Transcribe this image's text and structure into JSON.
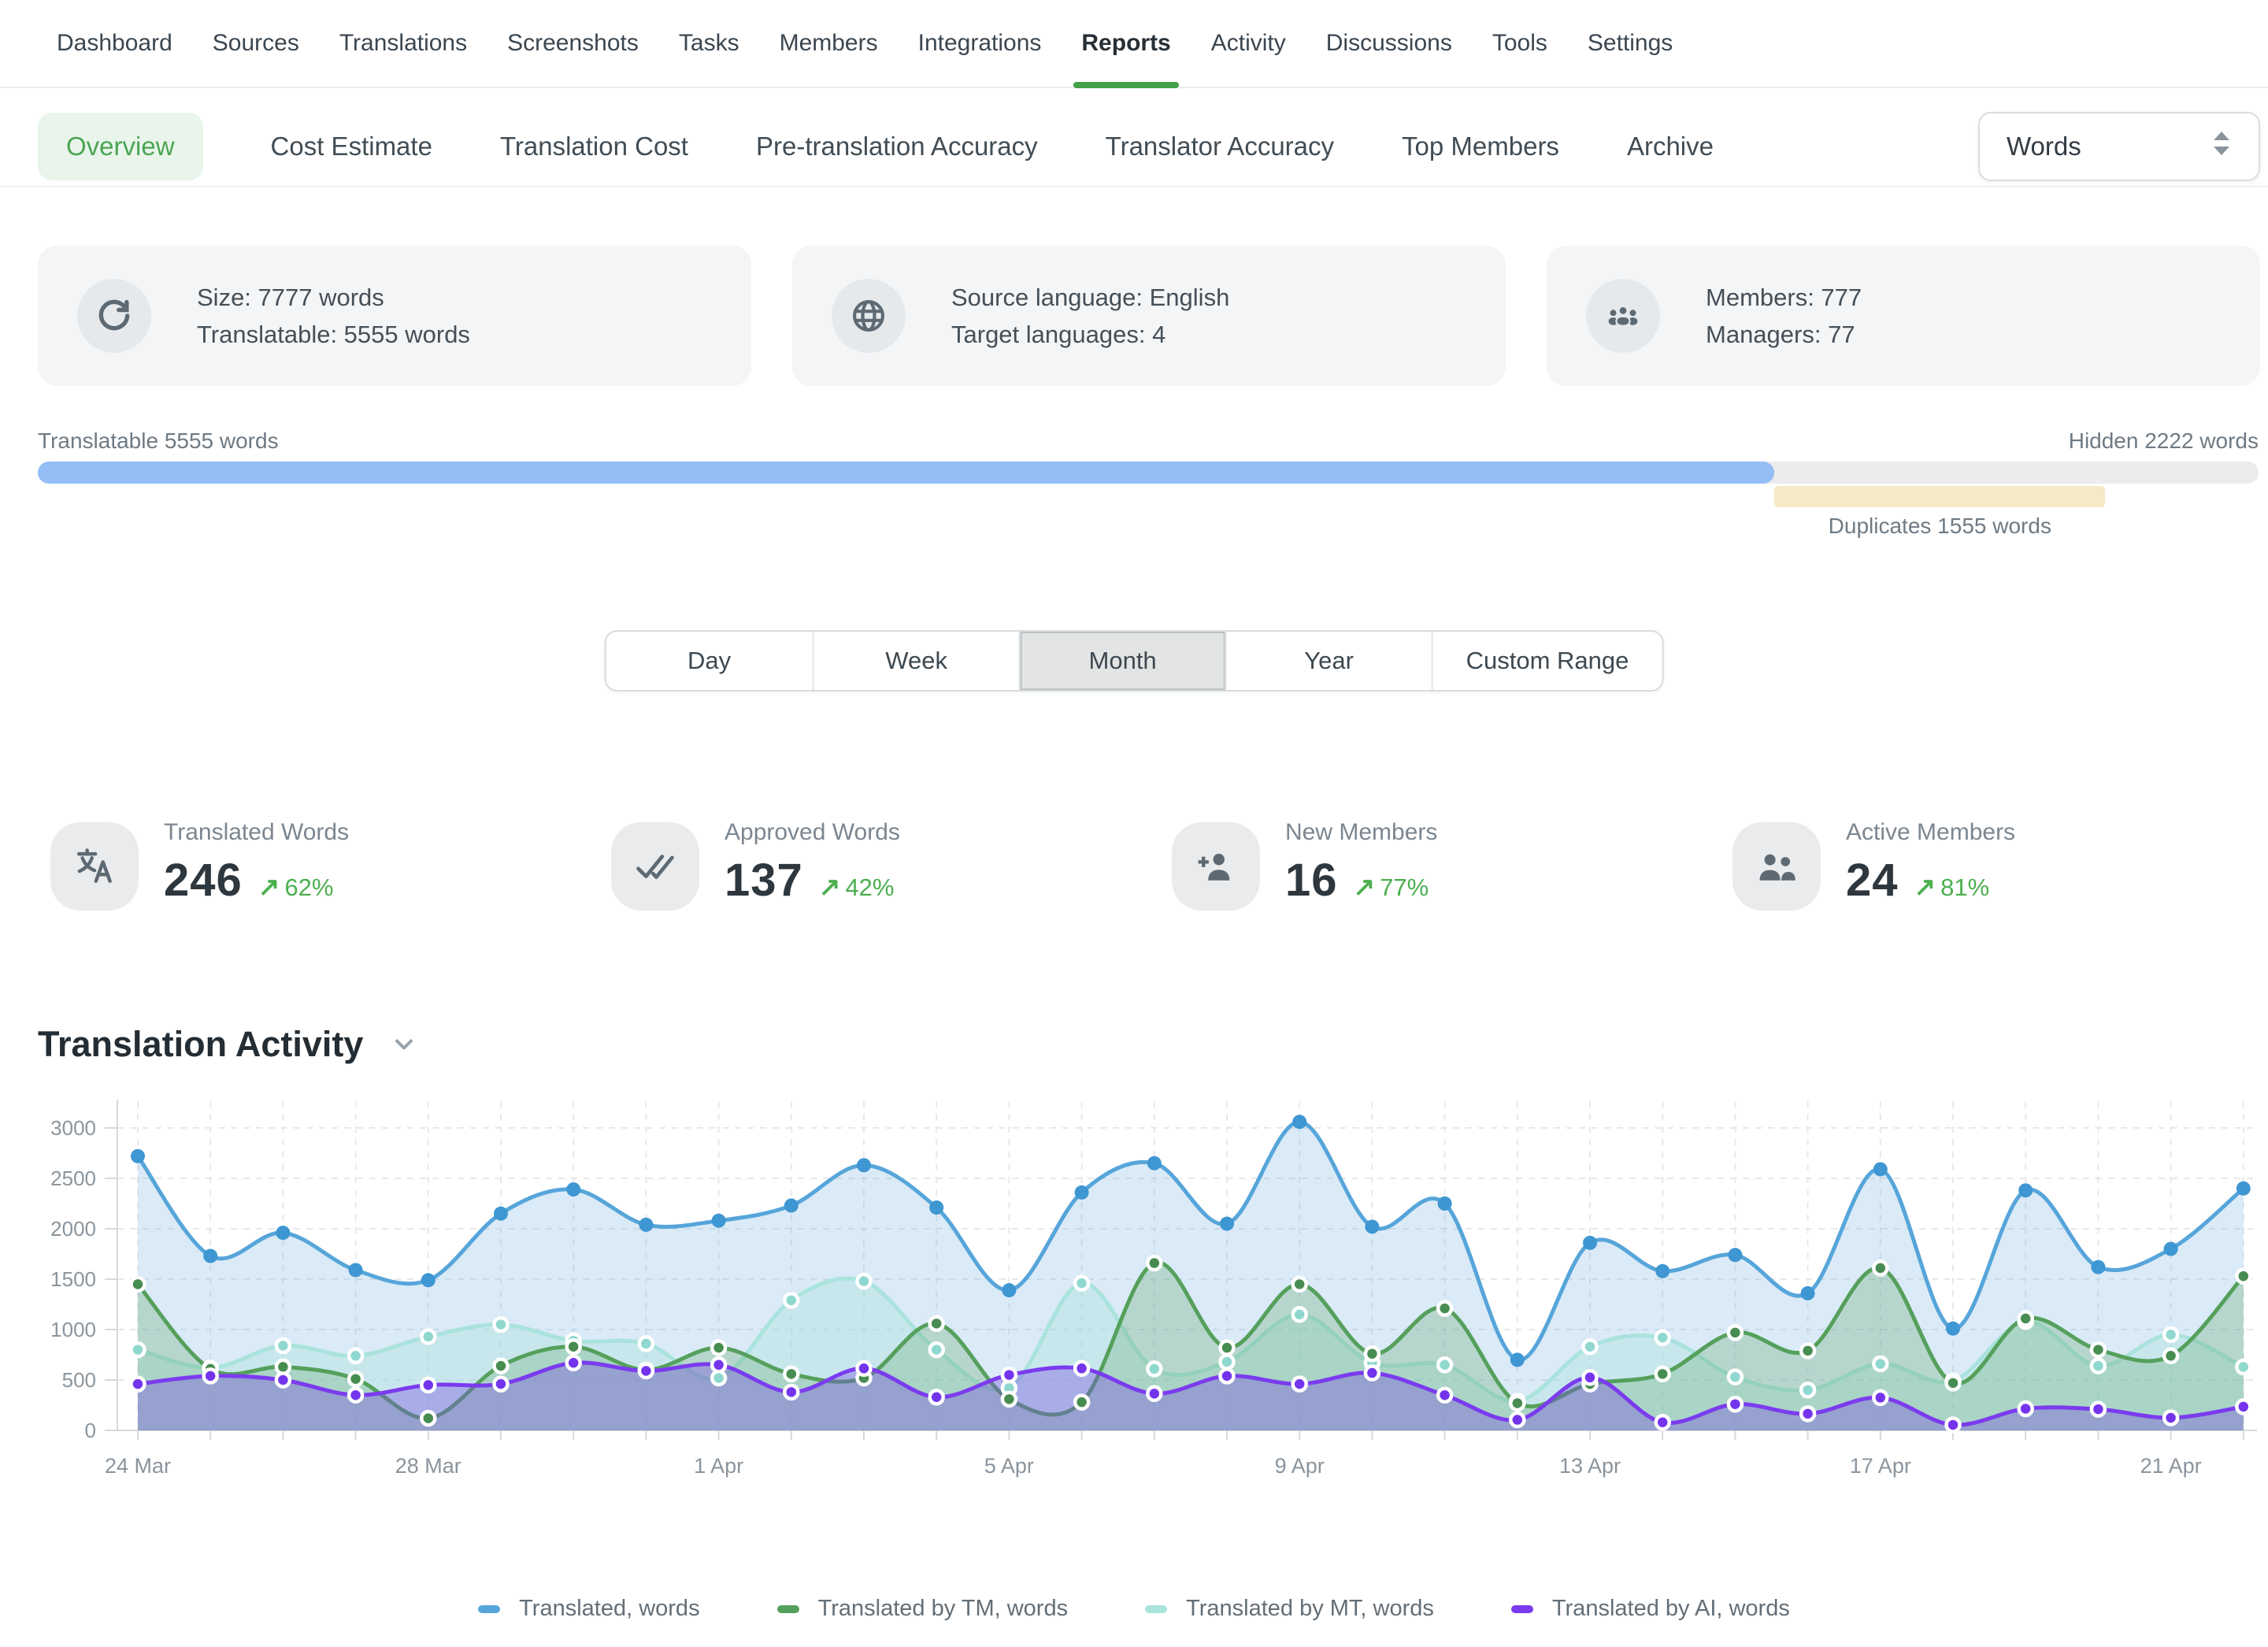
{
  "nav": {
    "items": [
      "Dashboard",
      "Sources",
      "Translations",
      "Screenshots",
      "Tasks",
      "Members",
      "Integrations",
      "Reports",
      "Activity",
      "Discussions",
      "Tools",
      "Settings"
    ],
    "active": "Reports"
  },
  "report_tabs": {
    "items": [
      "Overview",
      "Cost Estimate",
      "Translation Cost",
      "Pre-translation Accuracy",
      "Translator Accuracy",
      "Top Members",
      "Archive"
    ],
    "active": "Overview",
    "accent_color": "#4ba553",
    "accent_bg": "#e9f5ea"
  },
  "unit_select": {
    "value": "Words"
  },
  "info_cards": [
    {
      "icon": "sync-icon",
      "lines": [
        "Size: 7777 words",
        "Translatable: 5555 words"
      ]
    },
    {
      "icon": "globe-icon",
      "lines": [
        "Source language: English",
        "Target languages: 4"
      ]
    },
    {
      "icon": "team-icon",
      "lines": [
        "Members: 777",
        "Managers: 77"
      ]
    }
  ],
  "words_breakdown": {
    "left_label": "Translatable 5555 words",
    "right_label": "Hidden 2222 words",
    "duplicates_label": "Duplicates 1555 words",
    "translatable_pct": 78.2,
    "duplicates_pct": 14.9,
    "colors": {
      "translatable": "#93bef6",
      "track": "#ececee",
      "duplicates": "#f6e9c5"
    }
  },
  "range_tabs": {
    "items": [
      "Day",
      "Week",
      "Month",
      "Year",
      "Custom Range"
    ],
    "active": "Month"
  },
  "growth_color": "#4caf50",
  "stat_cards": [
    {
      "icon": "translate-icon",
      "label": "Translated Words",
      "value": "246",
      "growth": "62%"
    },
    {
      "icon": "double-check-icon",
      "label": "Approved Words",
      "value": "137",
      "growth": "42%"
    },
    {
      "icon": "user-add-icon",
      "label": "New Members",
      "value": "16",
      "growth": "77%"
    },
    {
      "icon": "users-icon",
      "label": "Active Members",
      "value": "24",
      "growth": "81%"
    }
  ],
  "section_title": "Translation Activity",
  "chart_data": {
    "type": "area",
    "title": "Translation Activity",
    "x": [
      "24 Mar",
      "25 Mar",
      "26 Mar",
      "27 Mar",
      "28 Mar",
      "29 Mar",
      "30 Mar",
      "31 Mar",
      "1 Apr",
      "2 Apr",
      "3 Apr",
      "4 Apr",
      "5 Apr",
      "6 Apr",
      "7 Apr",
      "8 Apr",
      "9 Apr",
      "10 Apr",
      "11 Apr",
      "12 Apr",
      "13 Apr",
      "14 Apr",
      "15 Apr",
      "16 Apr",
      "17 Apr",
      "18 Apr",
      "19 Apr",
      "20 Apr",
      "21 Apr",
      "22 Apr"
    ],
    "tick_every": 4,
    "yticks": [
      0,
      500,
      1000,
      1500,
      2000,
      2500,
      3000
    ],
    "ylim": [
      0,
      3250
    ],
    "grid": "dashed; vertical line per day, horizontal per 500 words",
    "legend_position": "bottom",
    "series": [
      {
        "name": "Translated, words",
        "color": "#56a5da",
        "fill": "rgba(121,180,226,0.28)",
        "point": "#3e96d2",
        "values": [
          2720,
          1730,
          1960,
          1590,
          1490,
          2150,
          2390,
          2040,
          2080,
          2230,
          2630,
          2210,
          1390,
          2360,
          2650,
          2050,
          3060,
          2020,
          2250,
          700,
          1860,
          1580,
          1740,
          1360,
          2590,
          1010,
          2380,
          1620,
          1800,
          2400
        ]
      },
      {
        "name": "Translated by MT, words",
        "color": "#a9e3dc",
        "fill": "rgba(169,227,220,0.40)",
        "point": "#8fd8cf",
        "values": [
          800,
          620,
          840,
          740,
          930,
          1050,
          890,
          860,
          520,
          1290,
          1480,
          800,
          420,
          1460,
          610,
          680,
          1150,
          670,
          650,
          290,
          830,
          920,
          530,
          400,
          660,
          490,
          1080,
          640,
          950,
          630
        ]
      },
      {
        "name": "Translated by TM, words",
        "color": "#55a05c",
        "fill": "rgba(101,168,109,0.30)",
        "point": "#478c50",
        "values": [
          1450,
          610,
          630,
          510,
          120,
          640,
          830,
          600,
          820,
          560,
          520,
          1060,
          310,
          280,
          1660,
          820,
          1450,
          760,
          1210,
          270,
          460,
          560,
          970,
          790,
          1610,
          470,
          1110,
          800,
          740,
          1530
        ]
      },
      {
        "name": "Translated by AI, words",
        "color": "#7b3bee",
        "fill": "rgba(122,79,223,0.38)",
        "point": "#7434ec",
        "values": [
          460,
          540,
          500,
          350,
          450,
          460,
          670,
          590,
          650,
          380,
          615,
          330,
          550,
          615,
          365,
          540,
          460,
          570,
          350,
          105,
          525,
          80,
          260,
          165,
          325,
          55,
          215,
          210,
          125,
          235
        ]
      }
    ],
    "legend_order": [
      "Translated, words",
      "Translated by TM, words",
      "Translated by MT, words",
      "Translated by AI, words"
    ]
  }
}
